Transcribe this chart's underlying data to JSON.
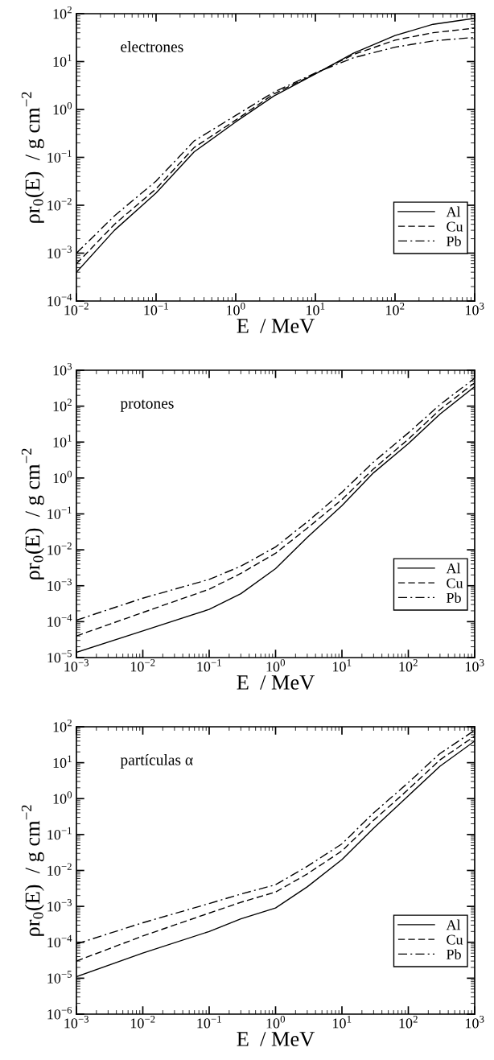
{
  "chart_data": [
    {
      "type": "line",
      "annotations": [
        "electrones"
      ],
      "xlabel": "E  / MeV",
      "ylabel": "ρr$_{0}$(E)  / g cm$^{−2}$",
      "log": "xy",
      "grid": false,
      "legend": "bottom right",
      "xlim": [
        0.01,
        1000
      ],
      "ylim": [
        0.0001,
        100
      ],
      "xticks": [
        {
          "value": 0.01,
          "label": "10$^{−2}$"
        },
        {
          "value": 0.1,
          "label": "10$^{−1}$"
        },
        {
          "value": 1,
          "label": "10$^{0}$"
        },
        {
          "value": 10,
          "label": "10$^{1}$"
        },
        {
          "value": 100,
          "label": "10$^{2}$"
        },
        {
          "value": 1000,
          "label": "10$^{3}$"
        }
      ],
      "yticks": [
        {
          "value": 0.0001,
          "label": "10$^{−4}$"
        },
        {
          "value": 0.001,
          "label": "10$^{−3}$"
        },
        {
          "value": 0.01,
          "label": "10$^{−2}$"
        },
        {
          "value": 0.1,
          "label": "10$^{−1}$"
        },
        {
          "value": 1,
          "label": "10$^{0}$"
        },
        {
          "value": 10,
          "label": "10$^{1}$"
        },
        {
          "value": 100,
          "label": "10$^{2}$"
        }
      ],
      "x": [
        0.01,
        0.03,
        0.1,
        0.3,
        1,
        3,
        10,
        30,
        100,
        300,
        1000
      ],
      "series": [
        {
          "name": "Al",
          "color": "#000000",
          "line_style": "solid",
          "values": [
            0.0004,
            0.003,
            0.018,
            0.13,
            0.55,
            1.9,
            5.5,
            15,
            35,
            60,
            80
          ]
        },
        {
          "name": "Cu",
          "color": "#000000",
          "line_style": "dashed",
          "values": [
            0.0006,
            0.004,
            0.022,
            0.16,
            0.6,
            2.1,
            5.6,
            14,
            28,
            40,
            50
          ]
        },
        {
          "name": "Pb",
          "color": "#000000",
          "line_style": "dashdot",
          "values": [
            0.001,
            0.006,
            0.032,
            0.22,
            0.75,
            2.3,
            5.8,
            12,
            20,
            27,
            32
          ]
        }
      ]
    },
    {
      "type": "line",
      "annotations": [
        "protones"
      ],
      "xlabel": "E  / MeV",
      "ylabel": "ρr$_{0}$(E)  / g cm$^{−2}$",
      "log": "xy",
      "grid": false,
      "legend": "bottom right",
      "xlim": [
        0.001,
        1000
      ],
      "ylim": [
        1e-05,
        1000
      ],
      "xticks": [
        {
          "value": 0.001,
          "label": "10$^{−3}$"
        },
        {
          "value": 0.01,
          "label": "10$^{−2}$"
        },
        {
          "value": 0.1,
          "label": "10$^{−1}$"
        },
        {
          "value": 1,
          "label": "10$^{0}$"
        },
        {
          "value": 10,
          "label": "10$^{1}$"
        },
        {
          "value": 100,
          "label": "10$^{2}$"
        },
        {
          "value": 1000,
          "label": "10$^{3}$"
        }
      ],
      "yticks": [
        {
          "value": 1e-05,
          "label": "10$^{−5}$"
        },
        {
          "value": 0.0001,
          "label": "10$^{−4}$"
        },
        {
          "value": 0.001,
          "label": "10$^{−3}$"
        },
        {
          "value": 0.01,
          "label": "10$^{−2}$"
        },
        {
          "value": 0.1,
          "label": "10$^{−1}$"
        },
        {
          "value": 1,
          "label": "10$^{0}$"
        },
        {
          "value": 10,
          "label": "10$^{1}$"
        },
        {
          "value": 100,
          "label": "10$^{2}$"
        },
        {
          "value": 1000,
          "label": "10$^{3}$"
        }
      ],
      "x": [
        0.001,
        0.01,
        0.1,
        0.3,
        1,
        3,
        10,
        30,
        100,
        300,
        1000
      ],
      "series": [
        {
          "name": "Al",
          "color": "#000000",
          "line_style": "solid",
          "values": [
            1.4e-05,
            5.5e-05,
            0.00022,
            0.0006,
            0.003,
            0.022,
            0.17,
            1.4,
            9,
            60,
            350
          ]
        },
        {
          "name": "Cu",
          "color": "#000000",
          "line_style": "dashed",
          "values": [
            4e-05,
            0.00018,
            0.0008,
            0.0022,
            0.008,
            0.04,
            0.25,
            1.8,
            12,
            80,
            450
          ]
        },
        {
          "name": "Pb",
          "color": "#000000",
          "line_style": "dashdot",
          "values": [
            0.00011,
            0.00045,
            0.0015,
            0.0035,
            0.012,
            0.06,
            0.4,
            2.8,
            18,
            110,
            600
          ]
        }
      ]
    },
    {
      "type": "line",
      "annotations": [
        "partículas α"
      ],
      "xlabel": "E  / MeV",
      "ylabel": "ρr$_{0}$(E)  / g cm$^{−2}$",
      "log": "xy",
      "grid": false,
      "legend": "bottom right",
      "xlim": [
        0.001,
        1000
      ],
      "ylim": [
        1e-06,
        100
      ],
      "xticks": [
        {
          "value": 0.001,
          "label": "10$^{−3}$"
        },
        {
          "value": 0.01,
          "label": "10$^{−2}$"
        },
        {
          "value": 0.1,
          "label": "10$^{−1}$"
        },
        {
          "value": 1,
          "label": "10$^{0}$"
        },
        {
          "value": 10,
          "label": "10$^{1}$"
        },
        {
          "value": 100,
          "label": "10$^{2}$"
        },
        {
          "value": 1000,
          "label": "10$^{3}$"
        }
      ],
      "yticks": [
        {
          "value": 1e-06,
          "label": "10$^{−6}$"
        },
        {
          "value": 1e-05,
          "label": "10$^{−5}$"
        },
        {
          "value": 0.0001,
          "label": "10$^{−4}$"
        },
        {
          "value": 0.001,
          "label": "10$^{−3}$"
        },
        {
          "value": 0.01,
          "label": "10$^{−2}$"
        },
        {
          "value": 0.1,
          "label": "10$^{−1}$"
        },
        {
          "value": 1,
          "label": "10$^{0}$"
        },
        {
          "value": 10,
          "label": "10$^{1}$"
        },
        {
          "value": 100,
          "label": "10$^{2}$"
        }
      ],
      "x": [
        0.001,
        0.01,
        0.1,
        0.3,
        1,
        3,
        10,
        30,
        100,
        300,
        1000
      ],
      "series": [
        {
          "name": "Al",
          "color": "#000000",
          "line_style": "solid",
          "values": [
            1.1e-05,
            5e-05,
            0.0002,
            0.00045,
            0.0009,
            0.0035,
            0.02,
            0.15,
            1.2,
            8,
            40
          ]
        },
        {
          "name": "Cu",
          "color": "#000000",
          "line_style": "dashed",
          "values": [
            3e-05,
            0.00015,
            0.00065,
            0.0013,
            0.0025,
            0.008,
            0.035,
            0.25,
            1.8,
            12,
            55
          ]
        },
        {
          "name": "Pb",
          "color": "#000000",
          "line_style": "dashdot",
          "values": [
            9e-05,
            0.00035,
            0.0012,
            0.0022,
            0.004,
            0.013,
            0.055,
            0.4,
            2.8,
            18,
            80
          ]
        }
      ]
    }
  ]
}
